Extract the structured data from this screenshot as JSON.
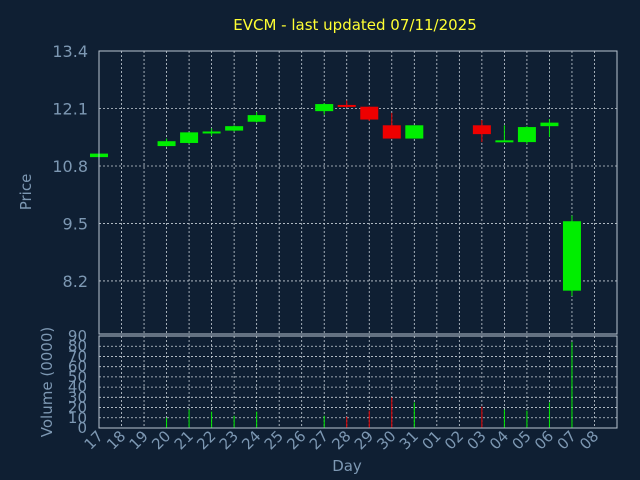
{
  "chart_data": {
    "type": "candlestick",
    "title": "EVCM - last updated 07/11/2025",
    "price_axis": {
      "label": "Price",
      "ylim": [
        7.0,
        13.4
      ],
      "ticks": [
        "13.4",
        "12.1",
        "10.8",
        "9.5",
        "8.2"
      ]
    },
    "volume_axis": {
      "label": "Volume (0000)",
      "ylim": [
        0,
        90
      ],
      "ticks": [
        "90",
        "80",
        "70",
        "60",
        "50",
        "40",
        "30",
        "20",
        "10",
        "0"
      ]
    },
    "x_axis": {
      "label": "Day",
      "ticks": [
        "17",
        "18",
        "19",
        "20",
        "21",
        "22",
        "23",
        "24",
        "25",
        "26",
        "27",
        "28",
        "29",
        "30",
        "31",
        "01",
        "02",
        "03",
        "04",
        "05",
        "06",
        "07",
        "08"
      ]
    },
    "grid": true,
    "colors": {
      "up": "#00ee00",
      "down": "#ee0000",
      "background": "#0f1f33",
      "title": "#ffff33",
      "axis_text": "#7d98b3"
    },
    "candles": [
      {
        "day": "17",
        "open": 11.0,
        "close": 11.08,
        "high": 11.08,
        "low": 11.0,
        "volume": 0
      },
      {
        "day": "20",
        "open": 11.25,
        "close": 11.36,
        "high": 11.42,
        "low": 11.24,
        "volume": 10
      },
      {
        "day": "21",
        "open": 11.32,
        "close": 11.56,
        "high": 11.56,
        "low": 11.3,
        "volume": 18
      },
      {
        "day": "22",
        "open": 11.54,
        "close": 11.58,
        "high": 11.65,
        "low": 11.48,
        "volume": 16
      },
      {
        "day": "23",
        "open": 11.6,
        "close": 11.7,
        "high": 11.72,
        "low": 11.58,
        "volume": 12
      },
      {
        "day": "24",
        "open": 11.8,
        "close": 11.95,
        "high": 12.02,
        "low": 11.78,
        "volume": 16
      },
      {
        "day": "27",
        "open": 12.04,
        "close": 12.2,
        "high": 12.22,
        "low": 11.96,
        "volume": 12
      },
      {
        "day": "28",
        "open": 12.18,
        "close": 12.15,
        "high": 12.28,
        "low": 12.12,
        "volume": 11
      },
      {
        "day": "29",
        "open": 12.14,
        "close": 11.85,
        "high": 12.14,
        "low": 11.82,
        "volume": 17
      },
      {
        "day": "30",
        "open": 11.72,
        "close": 11.42,
        "high": 12.0,
        "low": 11.42,
        "volume": 30
      },
      {
        "day": "31",
        "open": 11.42,
        "close": 11.72,
        "high": 11.72,
        "low": 11.42,
        "volume": 25
      },
      {
        "day": "03",
        "open": 11.72,
        "close": 11.52,
        "high": 11.84,
        "low": 11.34,
        "volume": 21
      },
      {
        "day": "04",
        "open": 11.35,
        "close": 11.38,
        "high": 11.72,
        "low": 11.35,
        "volume": 18
      },
      {
        "day": "05",
        "open": 11.34,
        "close": 11.68,
        "high": 11.7,
        "low": 11.3,
        "volume": 17
      },
      {
        "day": "06",
        "open": 11.7,
        "close": 11.78,
        "high": 11.86,
        "low": 11.46,
        "volume": 25
      },
      {
        "day": "07",
        "open": 7.98,
        "close": 9.55,
        "high": 9.68,
        "low": 7.86,
        "volume": 84
      }
    ]
  }
}
